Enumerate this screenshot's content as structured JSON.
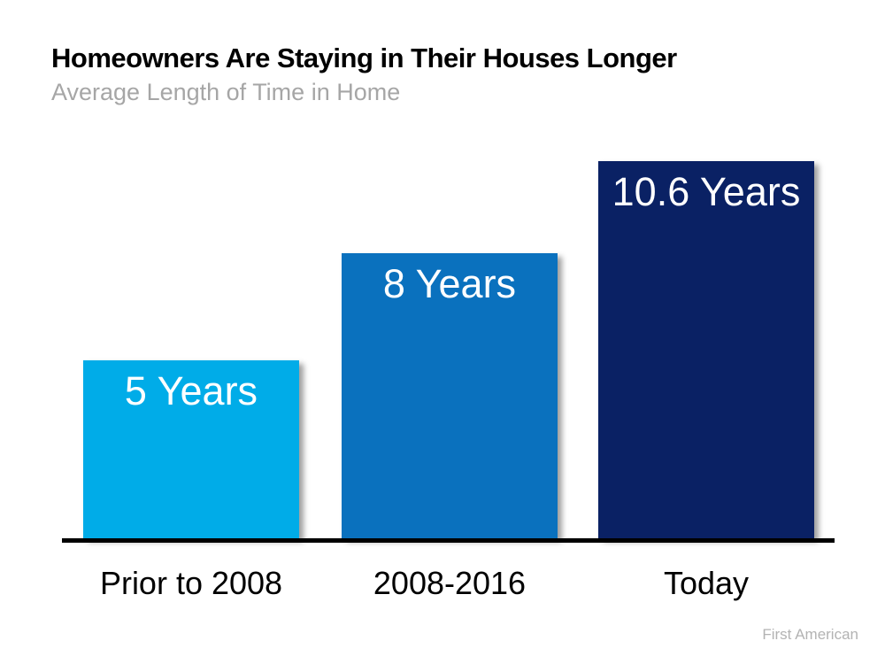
{
  "header": {
    "title": "Homeowners Are Staying in Their Houses Longer",
    "subtitle": "Average Length of Time in Home"
  },
  "chart_data": {
    "type": "bar",
    "title": "Homeowners Are Staying in Their Houses Longer",
    "subtitle": "Average Length of Time in Home",
    "categories": [
      "Prior to 2008",
      "2008-2016",
      "Today"
    ],
    "values": [
      5,
      8,
      10.6
    ],
    "bar_labels": [
      "5 Years",
      "8 Years",
      "10.6 Years"
    ],
    "bar_colors": [
      "#00ace8",
      "#0a71be",
      "#0a2164"
    ],
    "label_text_color": "#ffffff",
    "xlabel": "",
    "ylabel": "",
    "ylim": [
      0,
      11
    ],
    "grid": false,
    "legend": false,
    "axis_color": "#000000"
  },
  "footer": {
    "source": "First American"
  }
}
